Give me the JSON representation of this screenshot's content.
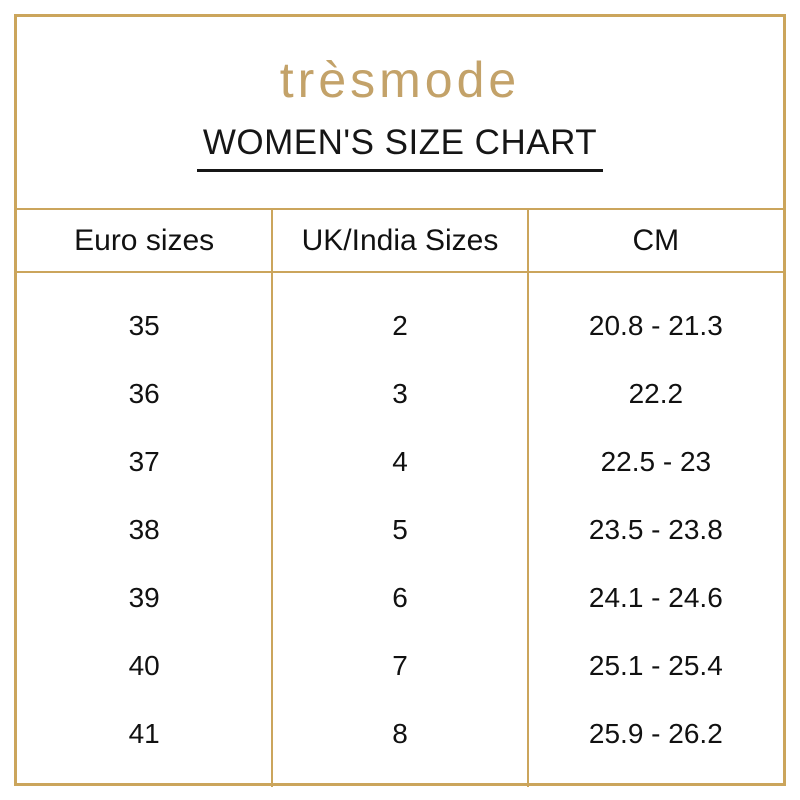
{
  "brand": {
    "logo": "trèsmode"
  },
  "header": {
    "title": "WOMEN'S SIZE CHART"
  },
  "table": {
    "columns": [
      "Euro sizes",
      "UK/India Sizes",
      "CM"
    ],
    "rows": [
      [
        "35",
        "2",
        "20.8 - 21.3"
      ],
      [
        "36",
        "3",
        "22.2"
      ],
      [
        "37",
        "4",
        "22.5 - 23"
      ],
      [
        "38",
        "5",
        "23.5 - 23.8"
      ],
      [
        "39",
        "6",
        "24.1 - 24.6"
      ],
      [
        "40",
        "7",
        "25.1 - 25.4"
      ],
      [
        "41",
        "8",
        "25.9 - 26.2"
      ]
    ]
  },
  "colors": {
    "frame_gold": "#CBA55C",
    "logo_gold": "#C3A269",
    "text": "#161616",
    "background": "#FFFFFF"
  },
  "chart_data": {
    "type": "table",
    "title": "WOMEN'S SIZE CHART",
    "columns": [
      "Euro sizes",
      "UK/India Sizes",
      "CM"
    ],
    "rows": [
      [
        "35",
        "2",
        "20.8 - 21.3"
      ],
      [
        "36",
        "3",
        "22.2"
      ],
      [
        "37",
        "4",
        "22.5 - 23"
      ],
      [
        "38",
        "5",
        "23.5 - 23.8"
      ],
      [
        "39",
        "6",
        "24.1 - 24.6"
      ],
      [
        "40",
        "7",
        "25.1 - 25.4"
      ],
      [
        "41",
        "8",
        "25.9 - 26.2"
      ]
    ],
    "legend_position": "none",
    "grid": "vertical-separators-and-header-rules"
  }
}
